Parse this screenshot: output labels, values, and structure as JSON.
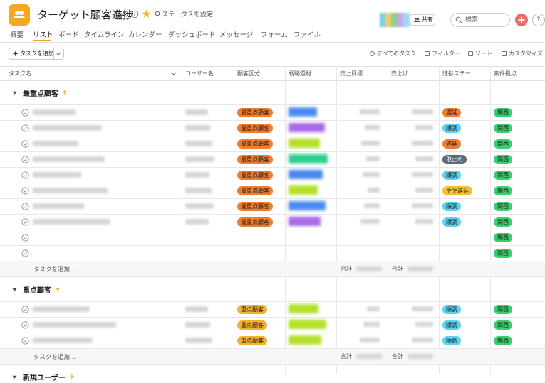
{
  "header": {
    "title": "ターゲット顧客進捗",
    "status": "ステータスを設定",
    "share": "共有",
    "search": "検索",
    "help": "?"
  },
  "tabs": [
    "概要",
    "リスト",
    "ボード",
    "タイムライン",
    "カレンダー",
    "ダッシュボード",
    "メッセージ",
    "フォーム",
    "ファイル"
  ],
  "toolbar": {
    "add_task": "タスクを追加",
    "actions": [
      "すべてのタスク",
      "フィルター",
      "ソート",
      "カスタマイズ"
    ]
  },
  "columns": [
    "タスク名",
    "ユーザー名",
    "顧客区分",
    "戦略題材",
    "売上目標",
    "売上げ",
    "進捗ステー...",
    "案件拠点"
  ],
  "sections": [
    {
      "title": "最重点顧客",
      "add": "タスクを追加...",
      "totals": [
        "合計",
        "合計"
      ],
      "rows": [
        {
          "segment": {
            "text": "最重点顧客",
            "color": "#f07d2e"
          },
          "status": {
            "text": "遅延",
            "color": "#f07d2e"
          },
          "region": {
            "text": "関西",
            "color": "#3ccf6f"
          }
        },
        {
          "segment": {
            "text": "最重点顧客",
            "color": "#f07d2e"
          },
          "status": {
            "text": "順調",
            "color": "#5ad3f0"
          },
          "region": {
            "text": "関西",
            "color": "#3ccf6f"
          }
        },
        {
          "segment": {
            "text": "最重点顧客",
            "color": "#f07d2e"
          },
          "status": {
            "text": "遅延",
            "color": "#f07d2e"
          },
          "region": {
            "text": "関西",
            "color": "#3ccf6f"
          }
        },
        {
          "segment": {
            "text": "最重点顧客",
            "color": "#f07d2e"
          },
          "status": {
            "text": "取止め",
            "color": "#5a6b80"
          },
          "region": {
            "text": "関西",
            "color": "#3ccf6f"
          }
        },
        {
          "segment": {
            "text": "最重点顧客",
            "color": "#f07d2e"
          },
          "status": {
            "text": "順調",
            "color": "#5ad3f0"
          },
          "region": {
            "text": "関西",
            "color": "#3ccf6f"
          }
        },
        {
          "segment": {
            "text": "最重点顧客",
            "color": "#f07d2e"
          },
          "status": {
            "text": "やや遅延",
            "color": "#f5c02e"
          },
          "region": {
            "text": "関西",
            "color": "#3ccf6f"
          }
        },
        {
          "segment": {
            "text": "最重点顧客",
            "color": "#f07d2e"
          },
          "status": {
            "text": "順調",
            "color": "#5ad3f0"
          },
          "region": {
            "text": "関西",
            "color": "#3ccf6f"
          }
        },
        {
          "segment": {
            "text": "最重点顧客",
            "color": "#f07d2e"
          },
          "status": {
            "text": "順調",
            "color": "#5ad3f0"
          },
          "region": {
            "text": "関西",
            "color": "#3ccf6f"
          }
        },
        {
          "segment": null,
          "status": null,
          "region": {
            "text": "関西",
            "color": "#3ccf6f"
          }
        },
        {
          "segment": null,
          "status": null,
          "region": {
            "text": "関西",
            "color": "#3ccf6f"
          }
        }
      ]
    },
    {
      "title": "重点顧客",
      "add": "タスクを追加...",
      "totals": [
        "合計",
        "合計"
      ],
      "rows": [
        {
          "segment": {
            "text": "重点顧客",
            "color": "#f5b12e"
          },
          "status": {
            "text": "順調",
            "color": "#5ad3f0"
          },
          "region": {
            "text": "関西",
            "color": "#3ccf6f"
          }
        },
        {
          "segment": {
            "text": "重点顧客",
            "color": "#f5b12e"
          },
          "status": {
            "text": "順調",
            "color": "#5ad3f0"
          },
          "region": {
            "text": "関西",
            "color": "#3ccf6f"
          }
        },
        {
          "segment": {
            "text": "重点顧客",
            "color": "#f5b12e"
          },
          "status": {
            "text": "順調",
            "color": "#5ad3f0"
          },
          "region": {
            "text": "関西",
            "color": "#3ccf6f"
          }
        }
      ]
    },
    {
      "title": "新規ユーザー",
      "rows": []
    }
  ]
}
